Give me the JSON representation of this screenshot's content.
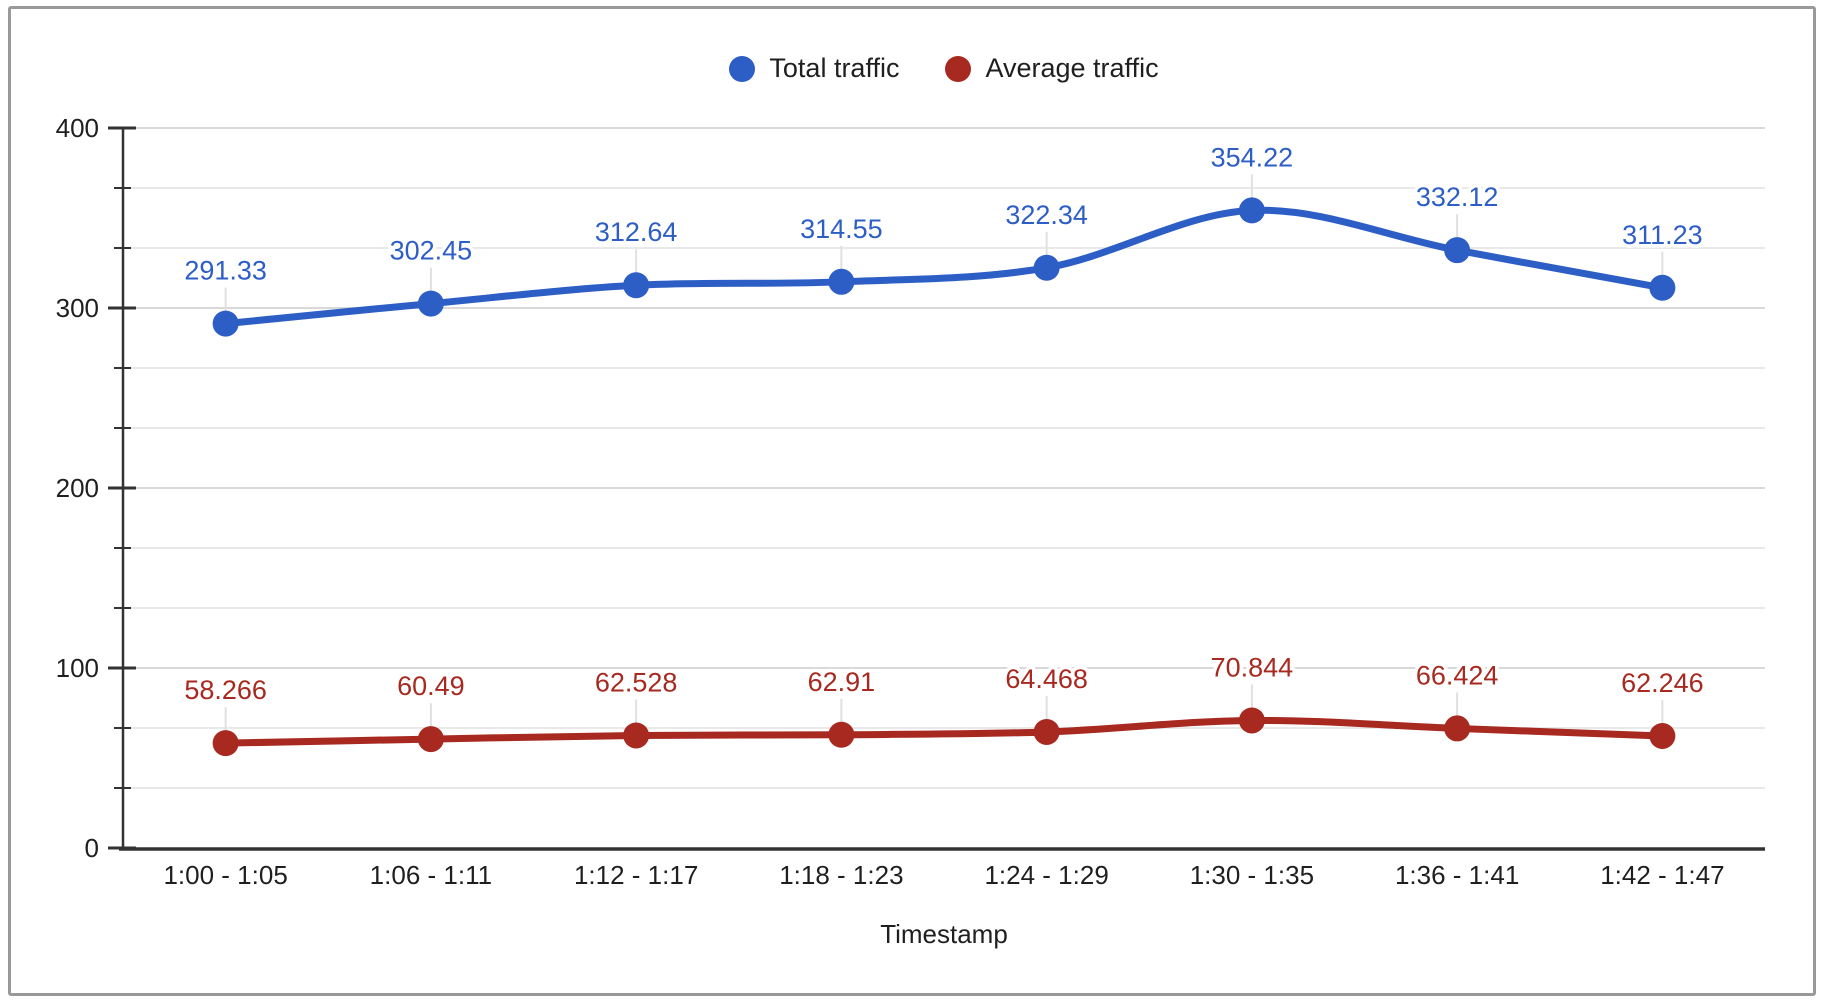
{
  "chart_data": {
    "type": "line",
    "categories": [
      "1:00 - 1:05",
      "1:06 - 1:11",
      "1:12 - 1:17",
      "1:18 - 1:23",
      "1:24 - 1:29",
      "1:30 - 1:35",
      "1:36 - 1:41",
      "1:42 - 1:47"
    ],
    "series": [
      {
        "name": "Total traffic",
        "color": "#2D5EC6",
        "values": [
          291.33,
          302.45,
          312.64,
          314.55,
          322.34,
          354.22,
          332.12,
          311.23
        ],
        "data_labels": [
          "291.33",
          "302.45",
          "312.64",
          "314.55",
          "322.34",
          "354.22",
          "332.12",
          "311.23"
        ]
      },
      {
        "name": "Average traffic",
        "color": "#A72920",
        "values": [
          58.266,
          60.49,
          62.528,
          62.91,
          64.468,
          70.844,
          66.424,
          62.246
        ],
        "data_labels": [
          "58.266",
          "60.49",
          "62.528",
          "62.91",
          "64.468",
          "70.844",
          "66.424",
          "62.246"
        ]
      }
    ],
    "xlabel": "Timestamp",
    "ylabel": "",
    "ylim": [
      0,
      400
    ],
    "y_major_ticks": [
      0,
      100,
      200,
      300,
      400
    ],
    "y_minor_divisions": 3,
    "legend_position": "top",
    "grid": true,
    "smooth": true
  },
  "style": {
    "major_grid_color": "#D9D9D9",
    "minor_grid_color": "#E9E9E9",
    "axis_color": "#333333",
    "text_color": "#1F1F1F",
    "leader_color": "#E0E0E0",
    "frame_border_color": "#97999B",
    "series_line_width": 7,
    "marker_radius": 13
  }
}
